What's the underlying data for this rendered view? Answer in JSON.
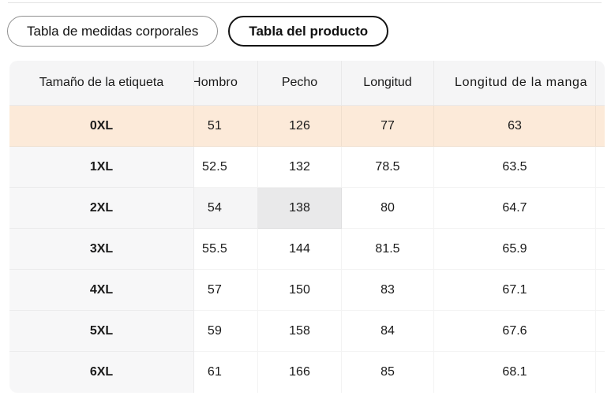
{
  "tabs": [
    {
      "label": "Tabla de medidas corporales",
      "selected": false
    },
    {
      "label": "Tabla del producto",
      "selected": true
    }
  ],
  "size_table": {
    "columns": [
      "Tamaño de la etiqueta",
      "Hombro",
      "Pecho",
      "Longitud",
      "Longitud de la manga"
    ],
    "rows": [
      {
        "size": "0XL",
        "values": [
          "51",
          "126",
          "77",
          "63"
        ],
        "highlight": "row"
      },
      {
        "size": "1XL",
        "values": [
          "52.5",
          "132",
          "78.5",
          "63.5"
        ]
      },
      {
        "size": "2XL",
        "values": [
          "54",
          "138",
          "80",
          "64.7"
        ],
        "cell_highlights": {
          "0": "match",
          "1": "exact"
        }
      },
      {
        "size": "3XL",
        "values": [
          "55.5",
          "144",
          "81.5",
          "65.9"
        ]
      },
      {
        "size": "4XL",
        "values": [
          "57",
          "150",
          "83",
          "67.1"
        ]
      },
      {
        "size": "5XL",
        "values": [
          "59",
          "158",
          "84",
          "67.6"
        ]
      },
      {
        "size": "6XL",
        "values": [
          "61",
          "166",
          "85",
          "68.1"
        ]
      }
    ],
    "colors": {
      "highlight_row_bg": "#fcead9",
      "header_bg": "#f5f5f6",
      "label_col_bg": "#f7f7f8",
      "cell_match_bg": "#f5f5f6",
      "cell_exact_bg": "#e9e9ea"
    }
  }
}
